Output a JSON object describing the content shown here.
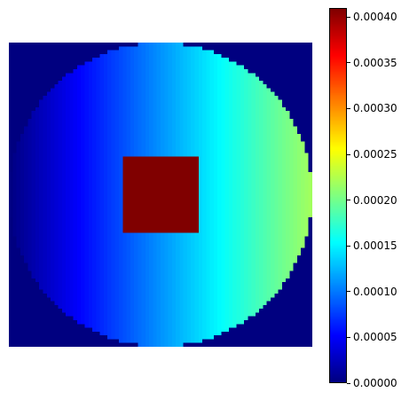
{
  "chart_data": {
    "type": "heatmap",
    "title": "",
    "xlabel": "",
    "ylabel": "",
    "axes_visible": false,
    "colormap": "jet",
    "grid_size": [
      80,
      80
    ],
    "value_range": [
      0.0,
      0.00041
    ],
    "background_value": 0.0,
    "disk": {
      "description_fields": "circular region centered in grid; values increase linearly left to right",
      "center": [
        40,
        40
      ],
      "radius": 40,
      "value_left_edge": 0.0,
      "value_right_edge": 0.00022
    },
    "square": {
      "value": 0.00041,
      "col_range": [
        30,
        49
      ],
      "row_range": [
        30,
        49
      ]
    },
    "colorbar": {
      "ticks": [
        {
          "value": 0.0,
          "label": "0.00000"
        },
        {
          "value": 5e-05,
          "label": "0.00005"
        },
        {
          "value": 0.0001,
          "label": "0.00010"
        },
        {
          "value": 0.00015,
          "label": "0.00015"
        },
        {
          "value": 0.0002,
          "label": "0.00020"
        },
        {
          "value": 0.00025,
          "label": "0.00025"
        },
        {
          "value": 0.0003,
          "label": "0.00030"
        },
        {
          "value": 0.00035,
          "label": "0.00035"
        },
        {
          "value": 0.0004,
          "label": "0.00040"
        }
      ]
    }
  }
}
